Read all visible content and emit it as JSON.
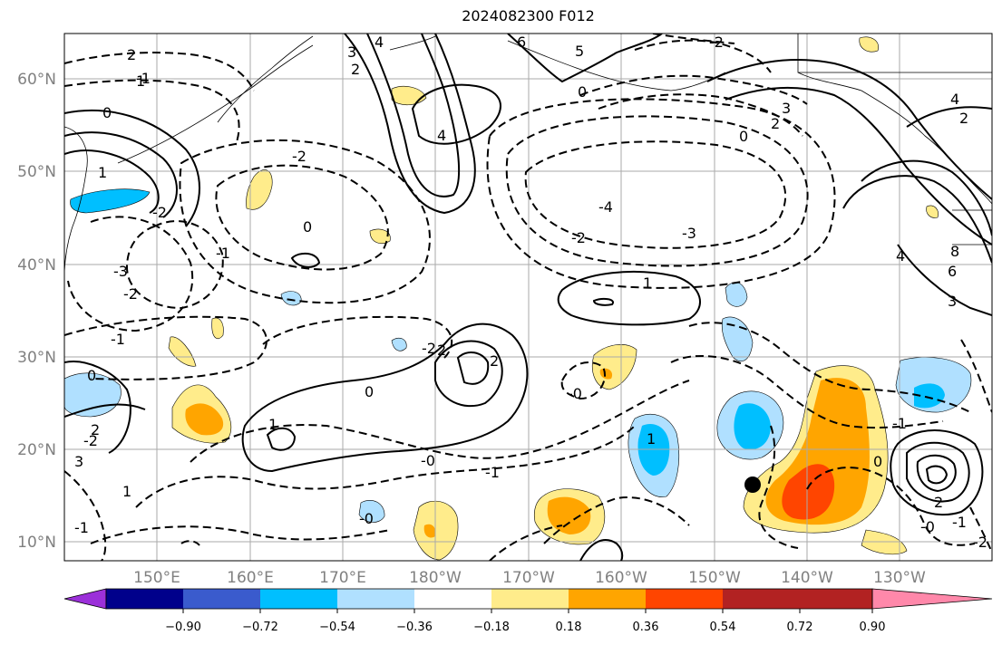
{
  "title": "2024082300 F012",
  "map": {
    "lat_labels": [
      "60°N",
      "50°N",
      "40°N",
      "30°N",
      "20°N",
      "10°N"
    ],
    "lon_labels": [
      "150°E",
      "160°E",
      "170°E",
      "180°W",
      "170°W",
      "160°W",
      "150°W",
      "140°W",
      "130°W"
    ],
    "gridlines": true,
    "storm_marker": "black-dot"
  },
  "colorbar": {
    "ticks": [
      "−0.90",
      "−0.72",
      "−0.54",
      "−0.36",
      "−0.18",
      "0.18",
      "0.36",
      "0.54",
      "0.72",
      "0.90"
    ],
    "colors": [
      "#9b30d9",
      "#00008b",
      "#3a5bcd",
      "#00bfff",
      "#b0e0ff",
      "#ffffff",
      "#ffec8b",
      "#ffa500",
      "#ff4500",
      "#b22222",
      "#ff88aa"
    ],
    "extend": "both"
  },
  "contour_labels": [
    "2",
    "1",
    "3",
    "4",
    "6",
    "5",
    "0",
    "-2",
    "2",
    "4",
    "3",
    "2",
    "0",
    "4",
    "2",
    "0",
    "1",
    "-2",
    "-3",
    "-4",
    "-2",
    "-1",
    "0",
    "-3",
    "-2",
    "-1",
    "-1",
    "1",
    "-2",
    "2",
    "-0",
    "0",
    "1",
    "-0",
    "-0",
    "-1",
    "-1",
    "2",
    "3",
    "-2",
    "1",
    "1",
    "0",
    "-0",
    "2",
    "-2",
    "0",
    "-1",
    "2",
    "4",
    "6",
    "8",
    "3",
    "-2",
    "-1"
  ]
}
